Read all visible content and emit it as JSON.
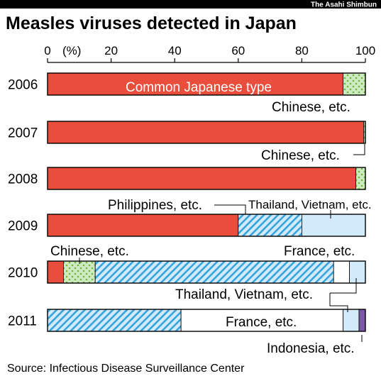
{
  "header": {
    "credit": "The Asahi Shimbun",
    "title": "Measles viruses detected in Japan"
  },
  "source": "Source: Infectious Disease Surveillance Center",
  "colors": {
    "japanese": "#e94e3c",
    "chinese_fill": "#cfeac0",
    "chinese_dot": "#6fb842",
    "thai_viet_fill": "#d3eafb",
    "thai_viet_stripe": "#36a4dc",
    "thai_viet_plain": "#d3eafb",
    "france": "#ffffff",
    "indonesia": "#7a5aa6"
  },
  "chart_data": {
    "type": "bar",
    "orientation": "horizontal",
    "stacked": true,
    "title": "Measles viruses detected in Japan",
    "xlim": [
      0,
      100
    ],
    "x_ticks": [
      0,
      20,
      40,
      60,
      80,
      100
    ],
    "x_unit": "(%)",
    "categories": [
      "2006",
      "2007",
      "2008",
      "2009",
      "2010",
      "2011"
    ],
    "bars": [
      {
        "year": "2006",
        "segments": [
          {
            "series": "Common Japanese type",
            "value": 93,
            "style": "japanese"
          },
          {
            "series": "Chinese, etc.",
            "value": 7,
            "style": "chinese"
          }
        ]
      },
      {
        "year": "2007",
        "segments": [
          {
            "series": "Common Japanese type",
            "value": 99.5,
            "style": "japanese"
          },
          {
            "series": "Chinese, etc.",
            "value": 0.5,
            "style": "chinese"
          }
        ]
      },
      {
        "year": "2008",
        "segments": [
          {
            "series": "Common Japanese type",
            "value": 97,
            "style": "japanese"
          },
          {
            "series": "Chinese, etc.",
            "value": 3,
            "style": "chinese"
          }
        ]
      },
      {
        "year": "2009",
        "segments": [
          {
            "series": "Common Japanese type",
            "value": 60,
            "style": "japanese"
          },
          {
            "series": "Philippines, etc.",
            "value": 20,
            "style": "thai_viet_stripe"
          },
          {
            "series": "Thailand, Vietnam, etc.",
            "value": 20,
            "style": "thai_viet_plain"
          }
        ]
      },
      {
        "year": "2010",
        "segments": [
          {
            "series": "Common Japanese type",
            "value": 5,
            "style": "japanese"
          },
          {
            "series": "Chinese, etc.",
            "value": 10,
            "style": "chinese"
          },
          {
            "series": "Philippines, etc.",
            "value": 75,
            "style": "thai_viet_stripe"
          },
          {
            "series": "France, etc.",
            "value": 5,
            "style": "france"
          },
          {
            "series": "Thailand, Vietnam, etc.",
            "value": 5,
            "style": "thai_viet_plain"
          }
        ]
      },
      {
        "year": "2011",
        "segments": [
          {
            "series": "Philippines, etc.",
            "value": 42,
            "style": "thai_viet_stripe"
          },
          {
            "series": "France, etc.",
            "value": 51,
            "style": "france"
          },
          {
            "series": "Thailand, Vietnam, etc.",
            "value": 5,
            "style": "thai_viet_plain"
          },
          {
            "series": "Indonesia, etc.",
            "value": 2,
            "style": "indonesia"
          }
        ]
      }
    ],
    "annotations": {
      "common_japanese": "Common Japanese type",
      "chinese_2006": "Chinese, etc.",
      "chinese_2007": "Chinese, etc.",
      "philippines_2009": "Philippines, etc.",
      "thai_viet_2009": "Thailand, Vietnam, etc.",
      "chinese_2010": "Chinese, etc.",
      "france_2010": "France, etc.",
      "thai_viet_2010": "Thailand, Vietnam, etc.",
      "france_2011": "France, etc.",
      "indonesia_2011": "Indonesia, etc."
    }
  }
}
